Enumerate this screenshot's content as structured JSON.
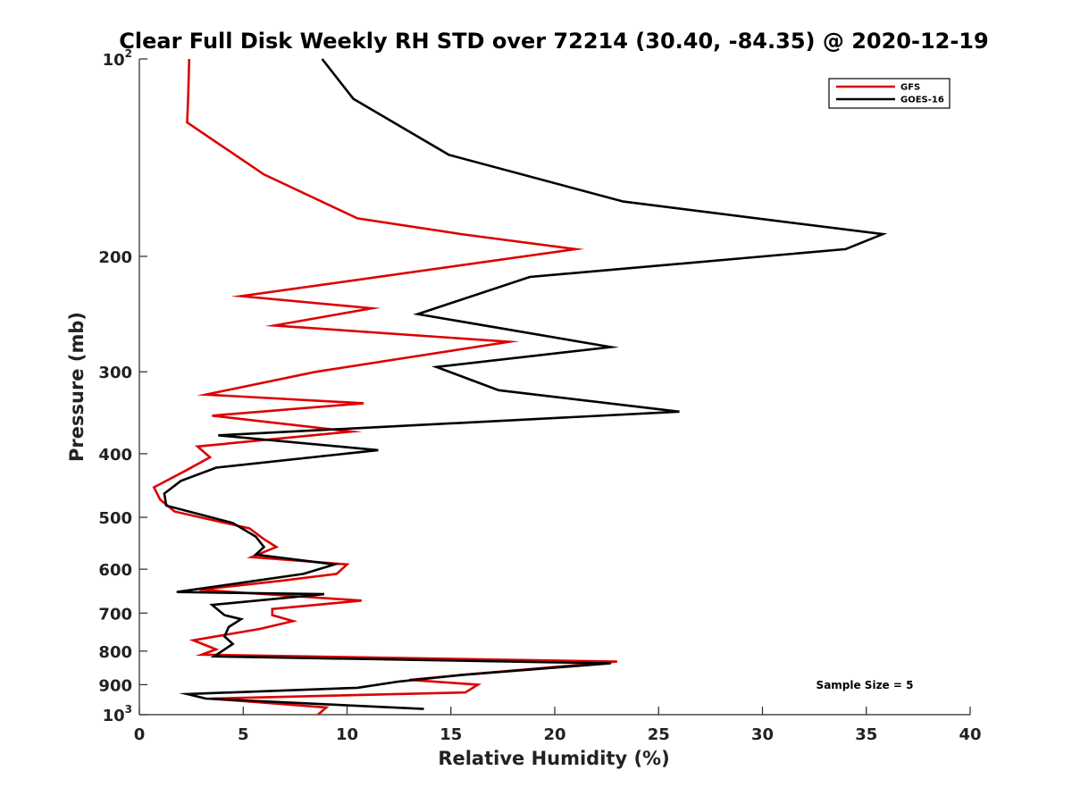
{
  "chart_data": {
    "type": "line",
    "title": "Clear Full Disk Weekly RH STD over 72214 (30.40, -84.35) @ 2020-12-19",
    "xlabel": "Relative Humidity (%)",
    "ylabel": "Pressure (mb)",
    "xlim": [
      0,
      40
    ],
    "ylim": [
      100,
      1000
    ],
    "yscale": "log",
    "ydirection": "reverse",
    "x_ticks": [
      0,
      5,
      10,
      15,
      20,
      25,
      30,
      35,
      40
    ],
    "y_ticks": [
      {
        "value": 100,
        "label": "10",
        "sup": "2"
      },
      {
        "value": 200,
        "label": "200"
      },
      {
        "value": 300,
        "label": "300"
      },
      {
        "value": 400,
        "label": "400"
      },
      {
        "value": 500,
        "label": "500"
      },
      {
        "value": 600,
        "label": "600"
      },
      {
        "value": 700,
        "label": "700"
      },
      {
        "value": 800,
        "label": "800"
      },
      {
        "value": 900,
        "label": "900"
      },
      {
        "value": 1000,
        "label": "10",
        "sup": "3"
      }
    ],
    "legend": {
      "position": "top-right"
    },
    "annotation": "Sample Size = 5",
    "series": [
      {
        "name": "GFS",
        "color": "#dd0000",
        "points": [
          [
            2.4,
            100
          ],
          [
            2.35,
            115
          ],
          [
            2.3,
            125
          ],
          [
            6.0,
            150
          ],
          [
            10.5,
            175
          ],
          [
            15.5,
            185
          ],
          [
            21.0,
            195
          ],
          [
            4.9,
            230
          ],
          [
            11.2,
            240
          ],
          [
            6.5,
            255
          ],
          [
            17.8,
            270
          ],
          [
            8.5,
            300
          ],
          [
            3.2,
            325
          ],
          [
            10.8,
            335
          ],
          [
            3.5,
            350
          ],
          [
            10.2,
            370
          ],
          [
            2.8,
            390
          ],
          [
            3.4,
            405
          ],
          [
            2.2,
            425
          ],
          [
            0.7,
            450
          ],
          [
            1.0,
            470
          ],
          [
            1.7,
            490
          ],
          [
            5.3,
            520
          ],
          [
            6.0,
            540
          ],
          [
            6.6,
            555
          ],
          [
            5.4,
            575
          ],
          [
            10.0,
            590
          ],
          [
            9.5,
            610
          ],
          [
            6.8,
            625
          ],
          [
            2.9,
            645
          ],
          [
            10.7,
            670
          ],
          [
            6.4,
            690
          ],
          [
            6.4,
            705
          ],
          [
            7.4,
            720
          ],
          [
            5.8,
            740
          ],
          [
            2.6,
            770
          ],
          [
            3.7,
            795
          ],
          [
            3.0,
            810
          ],
          [
            23.0,
            830
          ],
          [
            15.5,
            870
          ],
          [
            13.0,
            885
          ],
          [
            16.3,
            900
          ],
          [
            15.7,
            925
          ],
          [
            3.4,
            945
          ],
          [
            9.0,
            975
          ],
          [
            8.6,
            1000
          ]
        ]
      },
      {
        "name": "GOES-16",
        "color": "#000000",
        "points": [
          [
            8.8,
            100
          ],
          [
            10.3,
            115
          ],
          [
            14.9,
            140
          ],
          [
            23.3,
            165
          ],
          [
            35.8,
            185
          ],
          [
            34.0,
            195
          ],
          [
            18.8,
            215
          ],
          [
            13.4,
            245
          ],
          [
            22.7,
            275
          ],
          [
            14.3,
            295
          ],
          [
            17.3,
            320
          ],
          [
            26.0,
            345
          ],
          [
            3.8,
            375
          ],
          [
            11.5,
            395
          ],
          [
            3.7,
            420
          ],
          [
            2.0,
            440
          ],
          [
            1.2,
            460
          ],
          [
            1.3,
            480
          ],
          [
            4.5,
            510
          ],
          [
            5.6,
            535
          ],
          [
            6.0,
            555
          ],
          [
            5.6,
            570
          ],
          [
            9.4,
            590
          ],
          [
            7.9,
            610
          ],
          [
            1.8,
            650
          ],
          [
            8.9,
            655
          ],
          [
            3.5,
            680
          ],
          [
            4.1,
            705
          ],
          [
            4.9,
            715
          ],
          [
            4.3,
            735
          ],
          [
            4.1,
            760
          ],
          [
            4.5,
            780
          ],
          [
            3.6,
            815
          ],
          [
            22.7,
            835
          ],
          [
            15.5,
            870
          ],
          [
            12.5,
            890
          ],
          [
            10.5,
            910
          ],
          [
            2.3,
            930
          ],
          [
            3.2,
            945
          ],
          [
            13.7,
            980
          ]
        ]
      }
    ]
  }
}
